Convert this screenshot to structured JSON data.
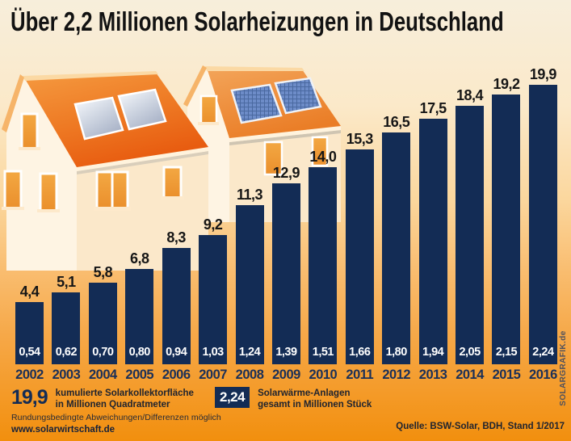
{
  "title": "Über 2,2 Millionen Solarheizungen in Deutschland",
  "chart_data": {
    "type": "bar",
    "title": "Über 2,2 Millionen Solarheizungen in Deutschland",
    "categories": [
      "2002",
      "2003",
      "2004",
      "2005",
      "2006",
      "2007",
      "2008",
      "2009",
      "2010",
      "2011",
      "2012",
      "2013",
      "2014",
      "2015",
      "2016"
    ],
    "series": [
      {
        "name": "kumulierte Solarkollektorfläche in Millionen Quadratmeter",
        "values": [
          4.4,
          5.1,
          5.8,
          6.8,
          8.3,
          9.2,
          11.3,
          12.9,
          14.0,
          15.3,
          16.5,
          17.5,
          18.4,
          19.2,
          19.9
        ],
        "labels": [
          "4,4",
          "5,1",
          "5,8",
          "6,8",
          "8,3",
          "9,2",
          "11,3",
          "12,9",
          "14,0",
          "15,3",
          "16,5",
          "17,5",
          "18,4",
          "19,2",
          "19,9"
        ],
        "label_position": "above-bar"
      },
      {
        "name": "Solarwärme-Anlagen gesamt in Millionen Stück",
        "values": [
          0.54,
          0.62,
          0.7,
          0.8,
          0.94,
          1.03,
          1.24,
          1.39,
          1.51,
          1.66,
          1.8,
          1.94,
          2.05,
          2.15,
          2.24
        ],
        "labels": [
          "0,54",
          "0,62",
          "0,70",
          "0,80",
          "0,94",
          "1,03",
          "1,24",
          "1,39",
          "1,51",
          "1,66",
          "1,80",
          "1,94",
          "2,05",
          "2,15",
          "2,24"
        ],
        "label_position": "inside-bar-bottom"
      }
    ],
    "ylim": [
      0,
      20.5
    ],
    "grid": false,
    "legend_position": "bottom"
  },
  "legend": {
    "area": {
      "value": "19,9",
      "label_line1": "kumulierte Solarkollektorfläche",
      "label_line2": "in Millionen Quadratmeter"
    },
    "units": {
      "value": "2,24",
      "label_line1": "Solarwärme-Anlagen",
      "label_line2": "gesamt in Millionen Stück"
    }
  },
  "footer": {
    "note": "Rundungsbedingte Abweichungen/Differenzen möglich",
    "website": "www.solarwirtschaft.de",
    "source": "Quelle: BSW-Solar, BDH, Stand 1/2017"
  },
  "watermark": "SOLARGRAFIK.de",
  "colors": {
    "bar": "#132c55",
    "bar_inner_text": "#ffffff",
    "year_text": "#1b3058",
    "title_text": "#121212",
    "background_top": "#f7eedb",
    "background_bottom": "#f28f0e",
    "roof_orange": "#e9600f",
    "pv_panel_blue": "#6d8cc8",
    "thermal_panel_silver": "#aab4c8"
  }
}
